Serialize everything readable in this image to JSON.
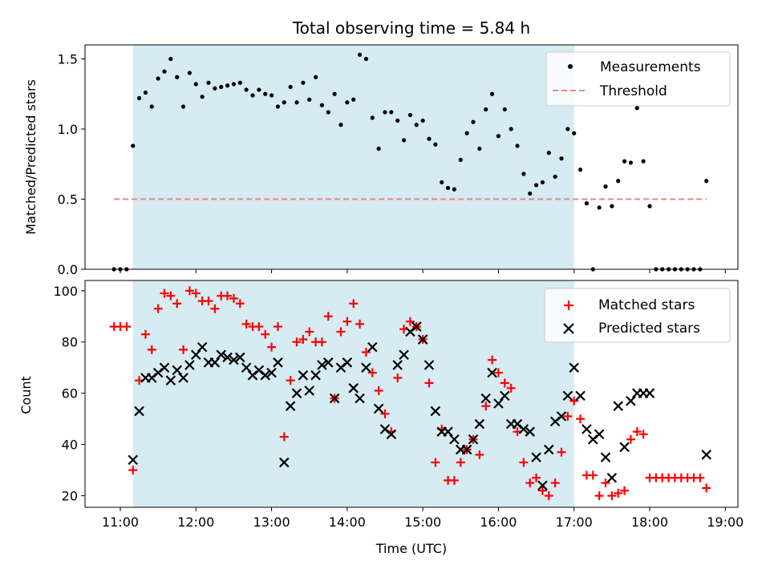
{
  "chart_data": [
    {
      "panel": "top",
      "type": "scatter",
      "title": "Total observing time = 5.84 h",
      "xlabel": "",
      "ylabel": "Matched/Predicted stars",
      "ylim": [
        0,
        1.6
      ],
      "xlim": [
        "10:32",
        "19:10"
      ],
      "yticks": [
        0.0,
        0.5,
        1.0,
        1.5
      ],
      "ytick_labels": [
        "0.0",
        "0.5",
        "1.0",
        "1.5"
      ],
      "xticks": [
        "11:00",
        "12:00",
        "13:00",
        "14:00",
        "15:00",
        "16:00",
        "17:00",
        "18:00",
        "19:00"
      ],
      "shaded_span": [
        "11:10",
        "17:00"
      ],
      "shaded_color": "#add8e6",
      "threshold": {
        "name": "Threshold",
        "value": 0.5,
        "x_range": [
          "10:55",
          "18:45"
        ],
        "color": "#f08080",
        "style": "dashed"
      },
      "legend": {
        "placement": "upper right",
        "entries": [
          "Measurements",
          "Threshold"
        ]
      },
      "series": [
        {
          "name": "Measurements",
          "marker": "dot",
          "color": "#000000",
          "x": [
            "10:55",
            "11:00",
            "11:05",
            "11:10",
            "11:15",
            "11:20",
            "11:25",
            "11:30",
            "11:35",
            "11:40",
            "11:45",
            "11:50",
            "11:55",
            "12:00",
            "12:05",
            "12:10",
            "12:15",
            "12:20",
            "12:25",
            "12:30",
            "12:35",
            "12:40",
            "12:45",
            "12:50",
            "12:55",
            "13:00",
            "13:05",
            "13:10",
            "13:15",
            "13:20",
            "13:25",
            "13:30",
            "13:35",
            "13:40",
            "13:45",
            "13:50",
            "13:55",
            "14:00",
            "14:05",
            "14:10",
            "14:15",
            "14:20",
            "14:25",
            "14:30",
            "14:35",
            "14:40",
            "14:45",
            "14:50",
            "14:55",
            "15:00",
            "15:05",
            "15:10",
            "15:15",
            "15:20",
            "15:25",
            "15:30",
            "15:35",
            "15:40",
            "15:45",
            "15:50",
            "15:55",
            "16:00",
            "16:05",
            "16:10",
            "16:15",
            "16:20",
            "16:25",
            "16:30",
            "16:35",
            "16:40",
            "16:45",
            "16:50",
            "16:55",
            "17:00",
            "17:05",
            "17:10",
            "17:15",
            "17:20",
            "17:25",
            "17:30",
            "17:35",
            "17:40",
            "17:45",
            "17:50",
            "17:55",
            "18:00",
            "18:05",
            "18:10",
            "18:15",
            "18:20",
            "18:25",
            "18:30",
            "18:35",
            "18:40",
            "18:45"
          ],
          "y": [
            0.0,
            0.0,
            0.0,
            0.88,
            1.22,
            1.26,
            1.16,
            1.36,
            1.41,
            1.5,
            1.37,
            1.16,
            1.4,
            1.32,
            1.23,
            1.33,
            1.29,
            1.3,
            1.31,
            1.32,
            1.33,
            1.28,
            1.24,
            1.28,
            1.25,
            1.24,
            1.16,
            1.19,
            1.3,
            1.19,
            1.33,
            1.21,
            1.37,
            1.17,
            1.12,
            1.25,
            1.03,
            1.19,
            1.21,
            1.53,
            1.5,
            1.08,
            0.86,
            1.12,
            1.12,
            1.06,
            0.92,
            1.1,
            1.03,
            1.06,
            0.93,
            0.89,
            0.62,
            0.58,
            0.57,
            0.78,
            0.97,
            1.05,
            0.86,
            1.14,
            1.25,
            0.95,
            1.14,
            1.0,
            0.88,
            0.68,
            0.54,
            0.6,
            0.62,
            0.83,
            0.66,
            0.79,
            1.0,
            0.97,
            0.71,
            0.47,
            0.0,
            0.44,
            0.59,
            0.45,
            0.63,
            0.77,
            0.76,
            1.15,
            0.77,
            0.45,
            0.0,
            0.0,
            0.0,
            0.0,
            0.0,
            0.0,
            0.0,
            0.0,
            0.63
          ]
        }
      ]
    },
    {
      "panel": "bottom",
      "type": "scatter",
      "title": "",
      "xlabel": "Time (UTC)",
      "ylabel": "Count",
      "ylim": [
        15.5,
        104
      ],
      "xlim": [
        "10:32",
        "19:10"
      ],
      "yticks": [
        20,
        40,
        60,
        80,
        100
      ],
      "ytick_labels": [
        "20",
        "40",
        "60",
        "80",
        "100"
      ],
      "xticks": [
        "11:00",
        "12:00",
        "13:00",
        "14:00",
        "15:00",
        "16:00",
        "17:00",
        "18:00",
        "19:00"
      ],
      "xtick_labels": [
        "11:00",
        "12:00",
        "13:00",
        "14:00",
        "15:00",
        "16:00",
        "17:00",
        "18:00",
        "19:00"
      ],
      "shaded_span": [
        "11:10",
        "17:00"
      ],
      "shaded_color": "#add8e6",
      "legend": {
        "placement": "upper right",
        "entries": [
          "Matched stars",
          "Predicted stars"
        ]
      },
      "series": [
        {
          "name": "Matched stars",
          "marker": "plus",
          "color": "#ff0000",
          "x": [
            "10:55",
            "11:00",
            "11:05",
            "11:10",
            "11:15",
            "11:20",
            "11:25",
            "11:30",
            "11:35",
            "11:40",
            "11:45",
            "11:50",
            "11:55",
            "12:00",
            "12:05",
            "12:10",
            "12:15",
            "12:20",
            "12:25",
            "12:30",
            "12:35",
            "12:40",
            "12:45",
            "12:50",
            "12:55",
            "13:00",
            "13:05",
            "13:10",
            "13:15",
            "13:20",
            "13:25",
            "13:30",
            "13:35",
            "13:40",
            "13:45",
            "13:50",
            "13:55",
            "14:00",
            "14:05",
            "14:10",
            "14:15",
            "14:20",
            "14:25",
            "14:30",
            "14:35",
            "14:40",
            "14:45",
            "14:50",
            "14:55",
            "15:00",
            "15:05",
            "15:10",
            "15:15",
            "15:20",
            "15:25",
            "15:30",
            "15:35",
            "15:40",
            "15:45",
            "15:50",
            "15:55",
            "16:00",
            "16:05",
            "16:10",
            "16:15",
            "16:20",
            "16:25",
            "16:30",
            "16:35",
            "16:40",
            "16:45",
            "16:50",
            "16:55",
            "17:00",
            "17:05",
            "17:10",
            "17:15",
            "17:20",
            "17:25",
            "17:30",
            "17:35",
            "17:40",
            "17:45",
            "17:50",
            "17:55",
            "18:00",
            "18:05",
            "18:10",
            "18:15",
            "18:20",
            "18:25",
            "18:30",
            "18:35",
            "18:40",
            "18:45"
          ],
          "y": [
            86,
            86,
            86,
            30,
            65,
            83,
            77,
            93,
            99,
            98,
            95,
            77,
            100,
            99,
            96,
            96,
            93,
            98,
            98,
            97,
            95,
            87,
            86,
            86,
            83,
            78,
            86,
            43,
            65,
            80,
            81,
            84,
            80,
            80,
            90,
            58,
            84,
            88,
            95,
            87,
            76,
            68,
            61,
            52,
            45,
            66,
            85,
            88,
            86,
            81,
            64,
            33,
            46,
            26,
            26,
            33,
            38,
            42,
            36,
            55,
            73,
            68,
            64,
            62,
            45,
            33,
            25,
            27,
            22,
            20,
            25,
            37,
            51,
            57,
            50,
            28,
            28,
            20,
            25,
            20,
            21,
            22,
            42,
            45,
            44,
            27,
            27,
            27,
            27,
            27,
            27,
            27,
            27,
            27,
            23
          ]
        },
        {
          "name": "Predicted stars",
          "marker": "x",
          "color": "#000000",
          "x": [
            "11:10",
            "11:15",
            "11:20",
            "11:25",
            "11:30",
            "11:35",
            "11:40",
            "11:45",
            "11:50",
            "11:55",
            "12:00",
            "12:05",
            "12:10",
            "12:15",
            "12:20",
            "12:25",
            "12:30",
            "12:35",
            "12:40",
            "12:45",
            "12:50",
            "12:55",
            "13:00",
            "13:05",
            "13:10",
            "13:15",
            "13:20",
            "13:25",
            "13:30",
            "13:35",
            "13:40",
            "13:45",
            "13:50",
            "13:55",
            "14:00",
            "14:05",
            "14:10",
            "14:15",
            "14:20",
            "14:25",
            "14:30",
            "14:35",
            "14:40",
            "14:45",
            "14:50",
            "14:55",
            "15:00",
            "15:05",
            "15:10",
            "15:15",
            "15:20",
            "15:25",
            "15:30",
            "15:35",
            "15:40",
            "15:45",
            "15:50",
            "15:55",
            "16:00",
            "16:05",
            "16:10",
            "16:15",
            "16:20",
            "16:25",
            "16:30",
            "16:35",
            "16:40",
            "16:45",
            "16:50",
            "16:55",
            "17:00",
            "17:05",
            "17:10",
            "17:15",
            "17:20",
            "17:25",
            "17:30",
            "17:35",
            "17:40",
            "17:45",
            "17:50",
            "17:55",
            "18:00",
            "18:45"
          ],
          "y": [
            34,
            53,
            66,
            66,
            68,
            70,
            65,
            69,
            66,
            71,
            75,
            78,
            72,
            72,
            75,
            74,
            73,
            74,
            70,
            67,
            69,
            67,
            68,
            72,
            33,
            55,
            60,
            67,
            61,
            67,
            71,
            72,
            58,
            70,
            72,
            62,
            58,
            70,
            78,
            54,
            46,
            44,
            71,
            75,
            84,
            86,
            81,
            71,
            53,
            45,
            45,
            42,
            38,
            38,
            42,
            48,
            58,
            68,
            56,
            59,
            48,
            48,
            46,
            45,
            35,
            24,
            38,
            49,
            51,
            59,
            70,
            59,
            46,
            42,
            44,
            35,
            27,
            55,
            39,
            57,
            60,
            60,
            60,
            36
          ]
        }
      ]
    }
  ]
}
